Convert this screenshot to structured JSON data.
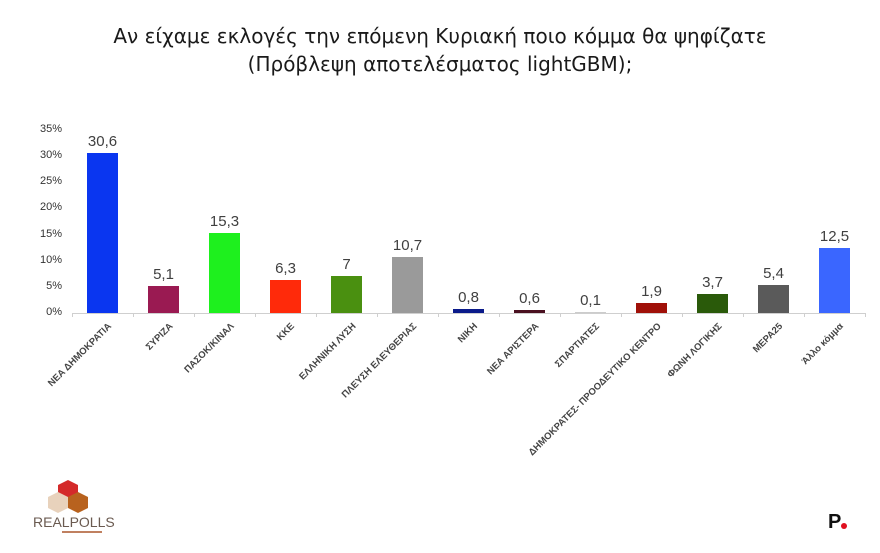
{
  "title": {
    "line1": "Αν είχαμε εκλογές την επόμενη Κυριακή ποιο κόμμα θα ψηφίζατε",
    "line2": "(Πρόβλεψη αποτελέσματος lightGBM);"
  },
  "chart_data": {
    "type": "bar",
    "title": "Αν είχαμε εκλογές την επόμενη Κυριακή ποιο κόμμα θα ψηφίζατε (Πρόβλεψη αποτελέσματος lightGBM);",
    "xlabel": "",
    "ylabel": "",
    "ylim": [
      0,
      35
    ],
    "yticks": [
      "0%",
      "5%",
      "10%",
      "15%",
      "20%",
      "25%",
      "30%",
      "35%"
    ],
    "grid": false,
    "legend": "none",
    "categories": [
      "ΝΕΑ ΔΗΜΟΚΡΑΤΙΑ",
      "ΣΥΡΙΖΑ",
      "ΠΑΣΟΚ/ΚΙΝΑΛ",
      "ΚΚΕ",
      "ΕΛΛΗΝΙΚΗ ΛΥΣΗ",
      "ΠΛΕΥΣΗ ΕΛΕΥΘΕΡΙΑΣ",
      "ΝΙΚΗ",
      "ΝΕΑ ΑΡΙΣΤΕΡΑ",
      "ΣΠΑΡΤΙΑΤΕΣ",
      "ΔΗΜΟΚΡΑΤΕΣ- ΠΡΟΟΔΕΥΤΙΚΟ ΚΕΝΤΡΟ",
      "ΦΩΝΗ ΛΟΓΙΚΗΣ",
      "ΜΕΡΑ25",
      "Άλλο κόμμα"
    ],
    "values": [
      30.6,
      5.1,
      15.3,
      6.3,
      7,
      10.7,
      0.8,
      0.6,
      0.1,
      1.9,
      3.7,
      5.4,
      12.5
    ],
    "value_labels": [
      "30,6",
      "5,1",
      "15,3",
      "6,3",
      "7",
      "10,7",
      "0,8",
      "0,6",
      "0,1",
      "1,9",
      "3,7",
      "5,4",
      "12,5"
    ],
    "colors": [
      "#0a36f0",
      "#9a1a52",
      "#1ef01e",
      "#ff2a0a",
      "#4a9010",
      "#9a9a9a",
      "#0a1a8a",
      "#4a1020",
      "#cccccc",
      "#a01008",
      "#2a5a0a",
      "#5a5a5a",
      "#3a66ff"
    ]
  },
  "logos": {
    "left": "REALPOLLS",
    "right": "P."
  }
}
